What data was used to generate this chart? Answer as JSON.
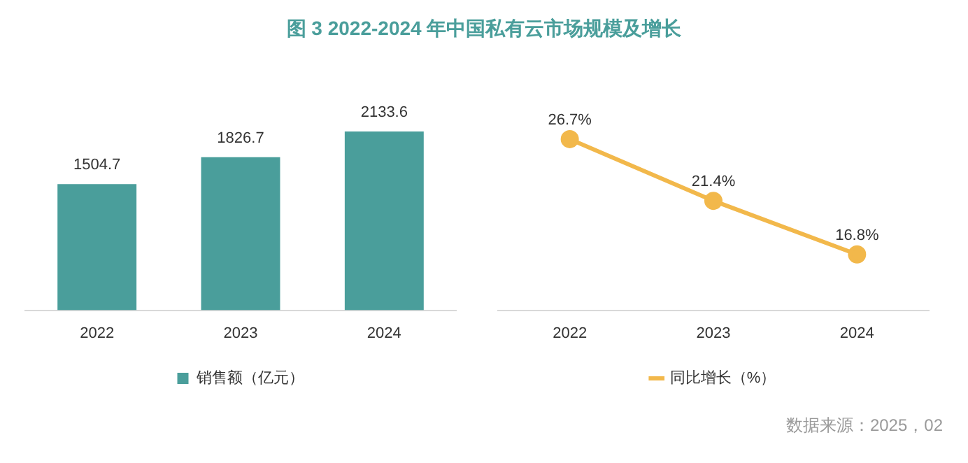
{
  "chart_data": [
    {
      "type": "bar",
      "title": "图  3   2022-2024 年中国私有云市场规模及增长",
      "categories": [
        "2022",
        "2023",
        "2024"
      ],
      "series": [
        {
          "name": "销售额（亿元）",
          "color": "#4a9e9b",
          "values": [
            1504.7,
            1826.7,
            2133.6
          ]
        }
      ],
      "data_labels": true,
      "grid": false,
      "legend": "bottom"
    },
    {
      "type": "line",
      "categories": [
        "2022",
        "2023",
        "2024"
      ],
      "series": [
        {
          "name": "同比增长（%）",
          "color": "#f2b84b",
          "values": [
            26.7,
            21.4,
            16.8
          ],
          "value_labels": [
            "26.7%",
            "21.4%",
            "16.8%"
          ]
        }
      ],
      "grid": false,
      "legend": "bottom",
      "marker": "circle",
      "line_style": "solid",
      "annotations": [
        "数据来源：2025，02"
      ]
    }
  ]
}
